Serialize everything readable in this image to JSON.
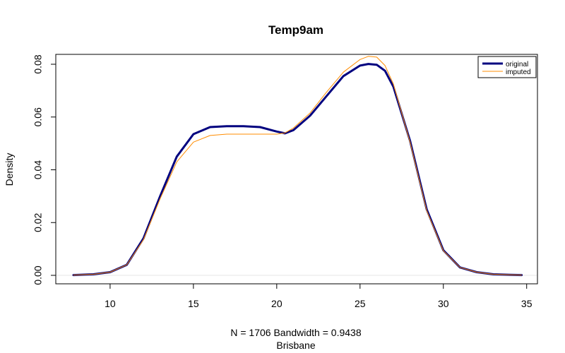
{
  "chart_data": {
    "type": "line",
    "title": "Temp9am",
    "xlabel_line1": "N = 1706   Bandwidth = 0.9438",
    "xlabel_line2": "Brisbane",
    "ylabel": "Density",
    "xlim": [
      7.8,
      34.8
    ],
    "ylim": [
      0,
      0.08
    ],
    "x_ticks": [
      10,
      15,
      20,
      25,
      30,
      35
    ],
    "y_ticks": [
      0.0,
      0.02,
      0.04,
      0.06,
      0.08
    ],
    "x_tick_labels": [
      "10",
      "15",
      "20",
      "25",
      "30",
      "35"
    ],
    "y_tick_labels": [
      "0.00",
      "0.02",
      "0.04",
      "0.06",
      "0.08"
    ],
    "legend_position": "top-right",
    "series": [
      {
        "name": "original",
        "color": "#00007f",
        "points": [
          [
            7.8,
            0.0001
          ],
          [
            9,
            0.0004
          ],
          [
            10,
            0.0012
          ],
          [
            11,
            0.004
          ],
          [
            12,
            0.014
          ],
          [
            13,
            0.03
          ],
          [
            14,
            0.045
          ],
          [
            15,
            0.0535
          ],
          [
            16,
            0.0562
          ],
          [
            17,
            0.0565
          ],
          [
            18,
            0.0565
          ],
          [
            19,
            0.0562
          ],
          [
            20,
            0.0545
          ],
          [
            20.5,
            0.0538
          ],
          [
            21,
            0.055
          ],
          [
            22,
            0.0605
          ],
          [
            23,
            0.068
          ],
          [
            24,
            0.0755
          ],
          [
            25,
            0.0795
          ],
          [
            25.5,
            0.0801
          ],
          [
            26,
            0.0798
          ],
          [
            26.5,
            0.0775
          ],
          [
            27,
            0.0715
          ],
          [
            28,
            0.051
          ],
          [
            29,
            0.025
          ],
          [
            30,
            0.0095
          ],
          [
            31,
            0.003
          ],
          [
            32,
            0.0012
          ],
          [
            33,
            0.0004
          ],
          [
            34,
            0.0002
          ],
          [
            34.7,
            0.0001
          ]
        ]
      },
      {
        "name": "imputed",
        "color": "#ff8c00",
        "points": [
          [
            7.8,
            0.0001
          ],
          [
            9,
            0.0004
          ],
          [
            10,
            0.0012
          ],
          [
            11,
            0.004
          ],
          [
            12,
            0.0135
          ],
          [
            13,
            0.029
          ],
          [
            14,
            0.043
          ],
          [
            15,
            0.0505
          ],
          [
            16,
            0.053
          ],
          [
            17,
            0.0535
          ],
          [
            18,
            0.0535
          ],
          [
            19,
            0.0535
          ],
          [
            20,
            0.0535
          ],
          [
            20.5,
            0.054
          ],
          [
            21,
            0.0558
          ],
          [
            22,
            0.0615
          ],
          [
            23,
            0.0695
          ],
          [
            24,
            0.077
          ],
          [
            25,
            0.0818
          ],
          [
            25.5,
            0.083
          ],
          [
            26,
            0.0827
          ],
          [
            26.5,
            0.0795
          ],
          [
            27,
            0.0725
          ],
          [
            28,
            0.0505
          ],
          [
            29,
            0.0245
          ],
          [
            30,
            0.0093
          ],
          [
            31,
            0.003
          ],
          [
            32,
            0.0012
          ],
          [
            33,
            0.0004
          ],
          [
            34,
            0.0002
          ],
          [
            34.7,
            0.0001
          ]
        ]
      }
    ]
  }
}
